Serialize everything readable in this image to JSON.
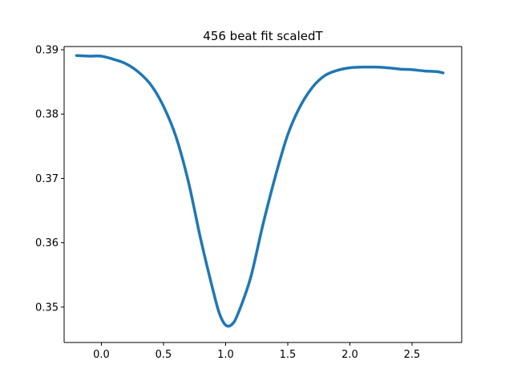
{
  "chart_data": {
    "type": "line",
    "title": "456 beat fit scaledT",
    "xlabel": "",
    "ylabel": "",
    "xlim": [
      -0.3,
      2.9
    ],
    "ylim": [
      0.3445,
      0.3905
    ],
    "x_ticks": [
      0.0,
      0.5,
      1.0,
      1.5,
      2.0,
      2.5
    ],
    "x_tick_labels": [
      "0.0",
      "0.5",
      "1.0",
      "1.5",
      "2.0",
      "2.5"
    ],
    "y_ticks": [
      0.35,
      0.36,
      0.37,
      0.38,
      0.39
    ],
    "y_tick_labels": [
      "0.35",
      "0.36",
      "0.37",
      "0.38",
      "0.39"
    ],
    "grid": false,
    "series": [
      {
        "color": "#1f77b4",
        "x": [
          -0.2,
          -0.1,
          0.0,
          0.1,
          0.2,
          0.3,
          0.4,
          0.5,
          0.6,
          0.7,
          0.8,
          0.9,
          0.95,
          1.0,
          1.05,
          1.1,
          1.2,
          1.3,
          1.4,
          1.5,
          1.6,
          1.7,
          1.8,
          1.9,
          2.0,
          2.1,
          2.2,
          2.3,
          2.4,
          2.5,
          2.6,
          2.7,
          2.75
        ],
        "y": [
          0.3891,
          0.389,
          0.389,
          0.3885,
          0.3878,
          0.3865,
          0.3845,
          0.3812,
          0.3765,
          0.3695,
          0.3605,
          0.3525,
          0.349,
          0.3472,
          0.3473,
          0.349,
          0.3545,
          0.3628,
          0.3703,
          0.3768,
          0.3812,
          0.3842,
          0.386,
          0.3868,
          0.3872,
          0.3873,
          0.3873,
          0.3872,
          0.387,
          0.3869,
          0.3867,
          0.3866,
          0.3864
        ]
      }
    ]
  }
}
